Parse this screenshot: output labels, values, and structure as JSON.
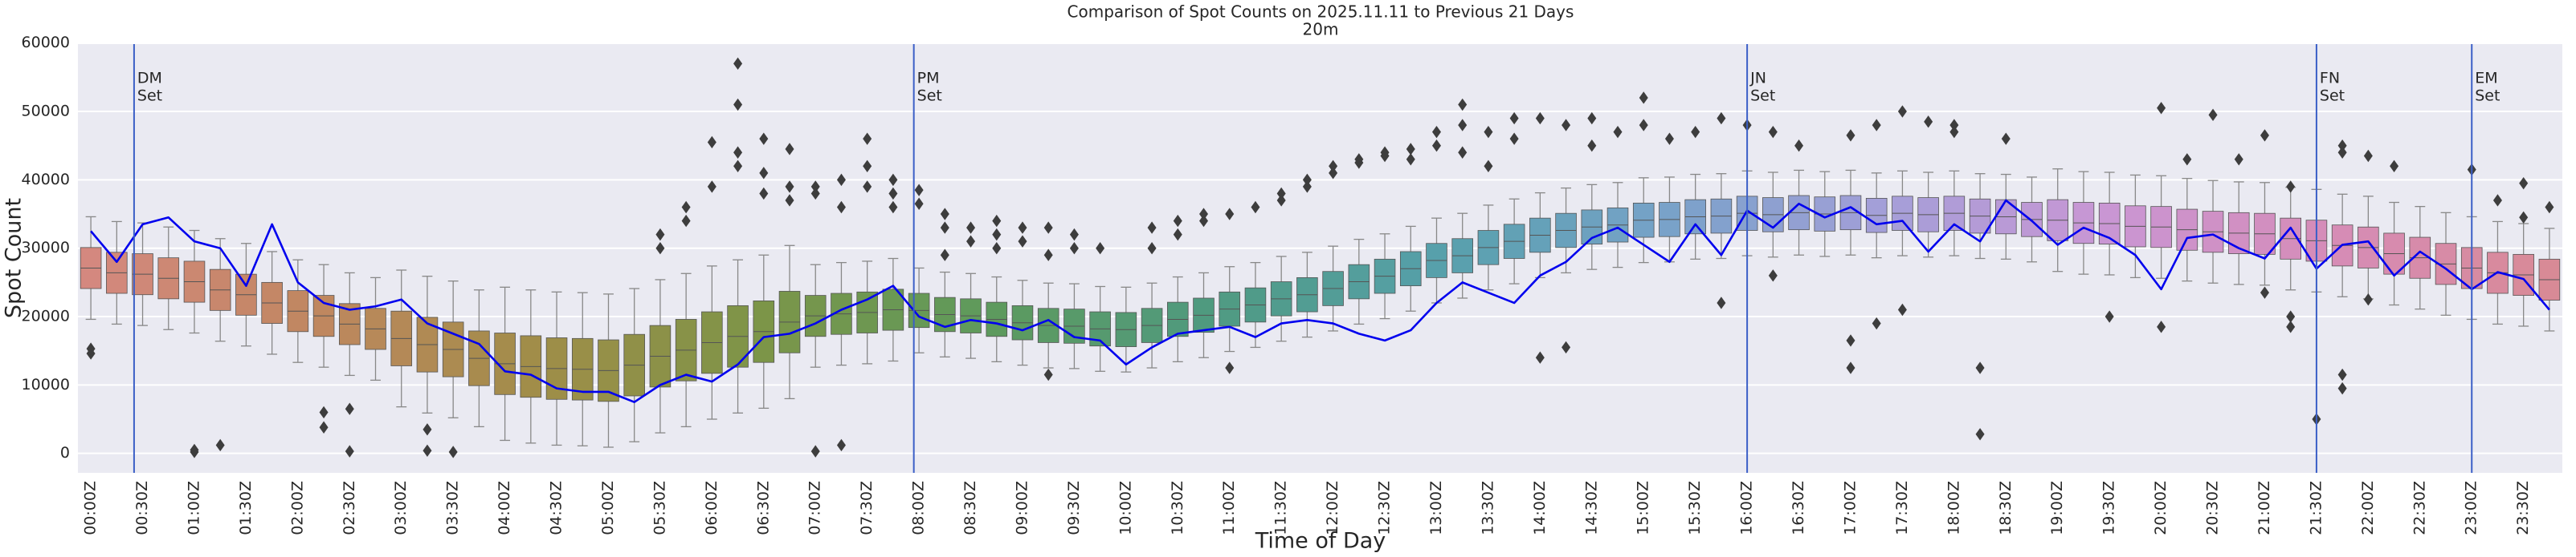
{
  "chart_data": {
    "type": "box",
    "title": "Comparison of Spot Counts on 2025.11.11 to Previous 21 Days",
    "subtitle": "20m",
    "xlabel": "Time of Day",
    "ylabel": "Spot Count",
    "ylim": [
      -2850,
      59850
    ],
    "yticks": [
      0,
      10000,
      20000,
      30000,
      40000,
      50000,
      60000
    ],
    "grid": true,
    "background": "#eaeaf2",
    "categories": [
      "00:00Z",
      null,
      "00:30Z",
      null,
      "01:00Z",
      null,
      "01:30Z",
      null,
      "02:00Z",
      null,
      "02:30Z",
      null,
      "03:00Z",
      null,
      "03:30Z",
      null,
      "04:00Z",
      null,
      "04:30Z",
      null,
      "05:00Z",
      null,
      "05:30Z",
      null,
      "06:00Z",
      null,
      "06:30Z",
      null,
      "07:00Z",
      null,
      "07:30Z",
      null,
      "08:00Z",
      null,
      "08:30Z",
      null,
      "09:00Z",
      null,
      "09:30Z",
      null,
      "10:00Z",
      null,
      "10:30Z",
      null,
      "11:00Z",
      null,
      "11:30Z",
      null,
      "12:00Z",
      null,
      "12:30Z",
      null,
      "13:00Z",
      null,
      "13:30Z",
      null,
      "14:00Z",
      null,
      "14:30Z",
      null,
      "15:00Z",
      null,
      "15:30Z",
      null,
      "16:00Z",
      null,
      "16:30Z",
      null,
      "17:00Z",
      null,
      "17:30Z",
      null,
      "18:00Z",
      null,
      "18:30Z",
      null,
      "19:00Z",
      null,
      "19:30Z",
      null,
      "20:00Z",
      null,
      "20:30Z",
      null,
      "21:00Z",
      null,
      "21:30Z",
      null,
      "22:00Z",
      null,
      "22:30Z",
      null,
      "23:00Z",
      null,
      "23:30Z",
      null
    ],
    "boxes": {
      "palette": [
        "#d4887f",
        "#c08760",
        "#a08d48",
        "#7c9548",
        "#5e9a5c",
        "#4f9a80",
        "#56a0aa",
        "#76a2c8",
        "#a39fd8",
        "#c996d4",
        "#d68cb8",
        "#d88a96"
      ],
      "edge_color": "#3d3d3d",
      "low": [
        19600,
        18900,
        18700,
        18100,
        17600,
        16400,
        15700,
        14500,
        13300,
        12600,
        11400,
        10700,
        6800,
        5900,
        5200,
        3900,
        1900,
        1500,
        1200,
        1100,
        900,
        1700,
        3000,
        3900,
        5000,
        5900,
        6600,
        8000,
        12600,
        12900,
        13100,
        13500,
        14700,
        14100,
        13900,
        13400,
        12900,
        12500,
        12400,
        12000,
        11900,
        12500,
        13400,
        14000,
        14900,
        15500,
        16400,
        17000,
        17900,
        18900,
        19700,
        20800,
        22000,
        22700,
        23900,
        24800,
        25700,
        26400,
        26900,
        27200,
        27900,
        28000,
        28400,
        28500,
        28900,
        28700,
        29000,
        28800,
        29000,
        28600,
        28900,
        28700,
        28900,
        28500,
        28400,
        28000,
        26600,
        26200,
        26100,
        25700,
        25600,
        25200,
        24900,
        24700,
        24600,
        23900,
        23600,
        22900,
        22600,
        21700,
        21100,
        20200,
        19600,
        18900,
        18600,
        17900
      ],
      "q1": [
        24100,
        23400,
        23200,
        22600,
        22100,
        20900,
        20200,
        19000,
        17800,
        17100,
        15900,
        15200,
        12800,
        11900,
        11200,
        9900,
        8600,
        8200,
        7900,
        7800,
        7600,
        8400,
        9700,
        10600,
        11700,
        12600,
        13300,
        14700,
        17100,
        17400,
        17600,
        18000,
        18400,
        17800,
        17600,
        17100,
        16600,
        16200,
        16100,
        15700,
        15600,
        16200,
        17100,
        17700,
        18600,
        19200,
        20100,
        20700,
        21600,
        22600,
        23400,
        24500,
        25700,
        26400,
        27600,
        28500,
        29400,
        30100,
        30600,
        30900,
        31600,
        31700,
        32100,
        32200,
        32600,
        32400,
        32700,
        32500,
        32700,
        32300,
        32600,
        32400,
        32600,
        32200,
        32100,
        31700,
        31100,
        30700,
        30600,
        30200,
        30100,
        29700,
        29400,
        29200,
        29100,
        28400,
        28100,
        27400,
        27100,
        26200,
        25600,
        24700,
        24100,
        23400,
        23100,
        22400
      ],
      "median": [
        27100,
        26400,
        26200,
        25600,
        25100,
        23900,
        23200,
        22000,
        20800,
        20100,
        18900,
        18200,
        16800,
        15900,
        15200,
        13900,
        13100,
        12700,
        12400,
        12300,
        12100,
        12900,
        14200,
        15100,
        16200,
        17100,
        17800,
        19200,
        20100,
        20400,
        20600,
        21000,
        20900,
        20300,
        20100,
        19600,
        19100,
        18700,
        18600,
        18200,
        18100,
        18700,
        19600,
        20200,
        21100,
        21700,
        22600,
        23200,
        24100,
        25100,
        25900,
        27000,
        28200,
        28900,
        30100,
        31000,
        31900,
        32600,
        33100,
        33400,
        34100,
        34200,
        34600,
        34700,
        35100,
        34900,
        35200,
        35000,
        35200,
        34800,
        35100,
        34900,
        35100,
        34700,
        34600,
        34200,
        34100,
        33700,
        33600,
        33200,
        33100,
        32700,
        32400,
        32200,
        32100,
        31400,
        31100,
        30400,
        30100,
        29200,
        28600,
        27700,
        27100,
        26400,
        26100,
        25400
      ],
      "q3": [
        30100,
        29400,
        29200,
        28600,
        28100,
        26900,
        26200,
        25000,
        23800,
        23100,
        21900,
        21200,
        20800,
        19900,
        19200,
        17900,
        17600,
        17200,
        16900,
        16800,
        16600,
        17400,
        18700,
        19600,
        20700,
        21600,
        22300,
        23700,
        23100,
        23400,
        23600,
        24000,
        23400,
        22800,
        22600,
        22100,
        21600,
        21200,
        21100,
        20700,
        20600,
        21200,
        22100,
        22700,
        23600,
        24200,
        25100,
        25700,
        26600,
        27600,
        28400,
        29500,
        30700,
        31400,
        32600,
        33500,
        34400,
        35100,
        35600,
        35900,
        36600,
        36700,
        37100,
        37200,
        37600,
        37400,
        37700,
        37500,
        37700,
        37300,
        37600,
        37400,
        37600,
        37200,
        37100,
        36700,
        37100,
        36700,
        36600,
        36200,
        36100,
        35700,
        35400,
        35200,
        35100,
        34400,
        34100,
        33400,
        33100,
        32200,
        31600,
        30700,
        30100,
        29400,
        29100,
        28400
      ],
      "high": [
        34600,
        33900,
        33700,
        33100,
        32600,
        31400,
        30700,
        29500,
        28300,
        27600,
        26400,
        25700,
        26800,
        25900,
        25200,
        23900,
        24300,
        23900,
        23600,
        23500,
        23300,
        24100,
        25400,
        26300,
        27400,
        28300,
        29000,
        30400,
        27600,
        27900,
        28100,
        28500,
        27100,
        26500,
        26300,
        25800,
        25300,
        24900,
        24800,
        24400,
        24300,
        24900,
        25800,
        26400,
        27300,
        27900,
        28800,
        29400,
        30300,
        31300,
        32100,
        33200,
        34400,
        35100,
        36300,
        37200,
        38100,
        38800,
        39300,
        39600,
        40300,
        40400,
        40800,
        40900,
        41300,
        41100,
        41400,
        41200,
        41400,
        41000,
        41300,
        41100,
        41300,
        40900,
        40800,
        40400,
        41600,
        41200,
        41100,
        40700,
        40600,
        40200,
        39900,
        39700,
        39600,
        38900,
        38600,
        37900,
        37600,
        36700,
        36100,
        35200,
        34600,
        33900,
        33600,
        32900
      ],
      "outliers": [
        [
          14600,
          15300
        ],
        [],
        [],
        [],
        [
          200,
          500
        ],
        [
          1200
        ],
        [],
        [],
        [],
        [
          3800,
          6000
        ],
        [
          300,
          6500
        ],
        [],
        [],
        [
          3500,
          400
        ],
        [
          200
        ],
        [],
        [],
        [],
        [],
        [],
        [],
        [],
        [
          30000,
          32000
        ],
        [
          34000,
          36000
        ],
        [
          39000,
          45500
        ],
        [
          57000,
          51000,
          44000,
          42000
        ],
        [
          41000,
          38000,
          46000
        ],
        [
          37000,
          39000,
          44500
        ],
        [
          39000,
          300,
          38000
        ],
        [
          40000,
          1200,
          36000
        ],
        [
          46000,
          39000,
          42000
        ],
        [
          38000,
          36000,
          40000
        ],
        [
          38500,
          36500
        ],
        [
          33000,
          35000,
          29000
        ],
        [
          31000,
          33000
        ],
        [
          32000,
          30000,
          34000
        ],
        [
          31000,
          33000
        ],
        [
          29000,
          33000,
          11500
        ],
        [
          32000,
          30000
        ],
        [
          30000
        ],
        [],
        [
          30000,
          33000
        ],
        [
          32000,
          34000
        ],
        [
          34000,
          35000
        ],
        [
          35000,
          12500
        ],
        [
          36000
        ],
        [
          37000,
          38000
        ],
        [
          39000,
          40000
        ],
        [
          41000,
          42000
        ],
        [
          43000,
          42500
        ],
        [
          44000,
          43500
        ],
        [
          44500,
          43000
        ],
        [
          47000,
          45000
        ],
        [
          51000,
          44000,
          48000
        ],
        [
          47000,
          42000
        ],
        [
          49000,
          46000
        ],
        [
          49000,
          14000
        ],
        [
          48000,
          15500
        ],
        [
          49000,
          45000
        ],
        [
          47000
        ],
        [
          52000,
          48000
        ],
        [
          46000
        ],
        [
          47000
        ],
        [
          22000,
          49000
        ],
        [
          48000
        ],
        [
          26000,
          47000
        ],
        [
          45000
        ],
        [],
        [
          46500,
          16500,
          12500
        ],
        [
          48000,
          19000
        ],
        [
          50000,
          21000
        ],
        [
          48500
        ],
        [
          48000,
          47000
        ],
        [
          2800,
          12500
        ],
        [
          46000
        ],
        [],
        [],
        [],
        [
          20000
        ],
        [],
        [
          50500,
          18500
        ],
        [
          43000
        ],
        [
          49500
        ],
        [
          43000
        ],
        [
          46500,
          23500
        ],
        [
          39000,
          18500,
          20000
        ],
        [
          5000
        ],
        [
          45000,
          9500,
          11500,
          44000
        ],
        [
          22500,
          43500
        ],
        [
          42000
        ],
        [],
        [],
        [
          41500
        ],
        [
          37000
        ],
        [
          39500,
          34500
        ],
        [
          36000
        ]
      ]
    },
    "line": {
      "color": "#0000ee",
      "values": [
        32500,
        28000,
        33500,
        34500,
        31000,
        30000,
        24500,
        33500,
        25000,
        22000,
        21000,
        21500,
        22500,
        19000,
        17500,
        16000,
        12000,
        11500,
        9500,
        9000,
        9000,
        7500,
        10000,
        11500,
        10500,
        13000,
        17000,
        17500,
        19000,
        21000,
        22500,
        24500,
        20000,
        18500,
        19500,
        19000,
        18000,
        19500,
        17000,
        16500,
        13000,
        15500,
        17500,
        18000,
        18500,
        17000,
        19000,
        19500,
        19000,
        17500,
        16500,
        18000,
        22000,
        25000,
        23500,
        22000,
        26000,
        28000,
        31500,
        33000,
        30500,
        28000,
        33500,
        29000,
        35500,
        33000,
        36500,
        34500,
        36000,
        33500,
        34000,
        29500,
        33500,
        31000,
        37000,
        34000,
        30500,
        33000,
        31500,
        29000,
        24000,
        31500,
        32000,
        30000,
        28500,
        33000,
        27000,
        30500,
        31000,
        26000,
        29500,
        27000,
        24000,
        26500,
        25500,
        21000
      ]
    },
    "vlines": {
      "color": "#3b5fc7",
      "items": [
        {
          "x": 1.67,
          "lines": [
            "DM",
            "Set"
          ]
        },
        {
          "x": 31.8,
          "lines": [
            "PM",
            "Set"
          ]
        },
        {
          "x": 64,
          "lines": [
            "JN",
            "Set"
          ]
        },
        {
          "x": 86,
          "lines": [
            "FN",
            "Set"
          ]
        },
        {
          "x": 92,
          "lines": [
            "EM",
            "Set"
          ]
        }
      ]
    }
  }
}
